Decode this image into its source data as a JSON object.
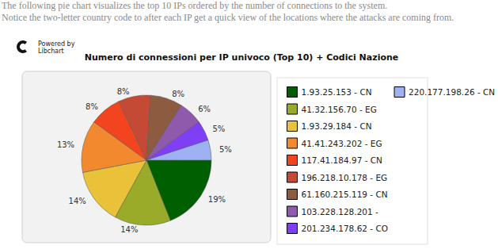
{
  "page": {
    "intro": [
      "The following pie chart visualizes the top 10 IPs ordered by the number of connections to the system.",
      "Notice the two-letter country code to after each IP get a quick view of the locations where the attacks are coming from."
    ],
    "logo": [
      "Powered by",
      "Libchart"
    ]
  },
  "chart_data": {
    "type": "pie",
    "title": "Numero di connessioni per IP univoco (Top 10) + Codici Nazione",
    "categories": [
      "1.93.25.153 - CN",
      "41.32.156.70 - EG",
      "1.93.29.184 - CN",
      "41.41.243.202 - EG",
      "117.41.184.97 - CN",
      "196.218.10.178 - EG",
      "61.160.215.119 - CN",
      "103.228.128.201 -",
      "201.234.178.62 - CO",
      "220.177.198.26 - CN"
    ],
    "values": [
      19,
      14,
      14,
      13,
      8,
      8,
      8,
      6,
      5,
      5
    ],
    "value_labels": [
      "19%",
      "14%",
      "14%",
      "13%",
      "8%",
      "8%",
      "8%",
      "6%",
      "5%",
      "5%"
    ],
    "colors": [
      "#005f00",
      "#9aab2a",
      "#e9c23a",
      "#f3892f",
      "#f2441f",
      "#c54a35",
      "#8d5b3f",
      "#8f5aab",
      "#7f3ff5",
      "#9db1f3"
    ],
    "data_labels": true,
    "legend": "right"
  }
}
